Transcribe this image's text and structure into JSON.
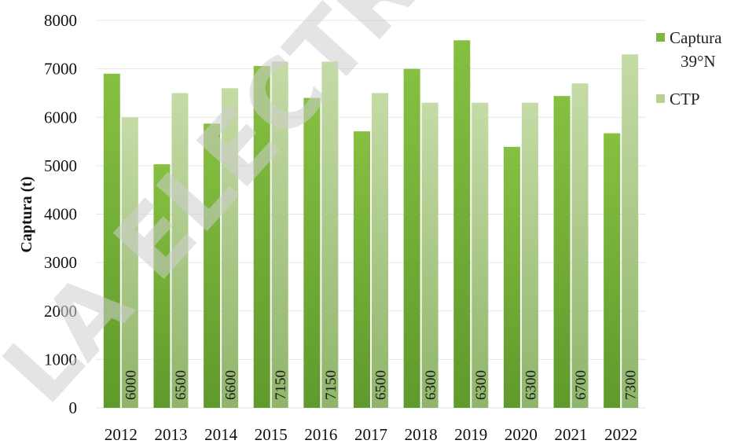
{
  "chart_data": {
    "type": "bar",
    "categories": [
      "2012",
      "2013",
      "2014",
      "2015",
      "2016",
      "2017",
      "2018",
      "2019",
      "2020",
      "2021",
      "2022"
    ],
    "series": [
      {
        "name": "Captura 39°N",
        "values": [
          6900,
          5030,
          5870,
          7060,
          6400,
          5710,
          7000,
          7590,
          5390,
          6440,
          5670
        ],
        "color": "#7cb83e"
      },
      {
        "name": "CTP",
        "values": [
          6000,
          6500,
          6600,
          7150,
          7150,
          6500,
          6300,
          6300,
          6300,
          6700,
          7300
        ],
        "color": "#b6d191",
        "data_labels": [
          "6000",
          "6500",
          "6600",
          "7150",
          "7150",
          "6500",
          "6300",
          "6300",
          "6300",
          "6700",
          "7300"
        ]
      }
    ],
    "ylabel": "Captura (t)",
    "ylim": [
      0,
      8000
    ],
    "yticks": [
      0,
      1000,
      2000,
      3000,
      4000,
      5000,
      6000,
      7000,
      8000
    ],
    "grid": true,
    "legend": {
      "placement": "right",
      "entries": [
        "Captura",
        "39°N",
        "CTP"
      ]
    },
    "watermark": "LA ELECTRC"
  }
}
